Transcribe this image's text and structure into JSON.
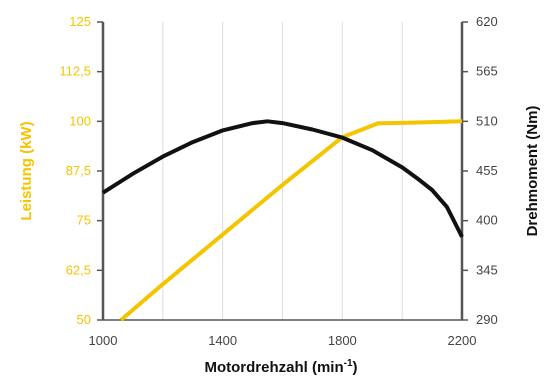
{
  "chart_data": {
    "type": "line",
    "xlabel": "Motordrehzahl (min",
    "xlabel_sup": "-1",
    "xlabel_close": ")",
    "ylabel_left": "Leistung (kW)",
    "ylabel_right": "Drehmoment (Nm)",
    "xlim": [
      1000,
      2200
    ],
    "ylim_left": [
      50,
      125
    ],
    "ylim_right": [
      290,
      620
    ],
    "x_ticks": [
      "1000",
      "1400",
      "1800",
      "2200"
    ],
    "x_tick_values": [
      1000,
      1400,
      1800,
      2200
    ],
    "y_left_ticks": [
      "125",
      "112,5",
      "100",
      "87,5",
      "75",
      "62,5",
      "50"
    ],
    "y_left_tick_values": [
      125,
      112.5,
      100,
      87.5,
      75,
      62.5,
      50
    ],
    "y_right_ticks": [
      "620",
      "565",
      "510",
      "455",
      "400",
      "345",
      "290"
    ],
    "y_right_tick_values": [
      620,
      565,
      510,
      455,
      400,
      345,
      290
    ],
    "grid": "vertical",
    "colors": {
      "power": "#f5c400",
      "torque": "#111111",
      "grid": "#dddddd",
      "axis": "#555555"
    },
    "series": [
      {
        "axis": "left",
        "color": "#f5c400",
        "x": [
          1060,
          1200,
          1400,
          1600,
          1800,
          1920,
          2000,
          2100,
          2200
        ],
        "y": [
          50,
          59,
          71.5,
          84,
          96,
          99.5,
          99.6,
          99.8,
          100
        ]
      },
      {
        "axis": "right",
        "color": "#111111",
        "x": [
          1000,
          1100,
          1200,
          1300,
          1400,
          1500,
          1550,
          1600,
          1700,
          1800,
          1900,
          2000,
          2050,
          2100,
          2150,
          2200
        ],
        "y": [
          431,
          452,
          471,
          487,
          500,
          508,
          510,
          508,
          501,
          492,
          478,
          459,
          447,
          434,
          415,
          382
        ]
      }
    ]
  }
}
